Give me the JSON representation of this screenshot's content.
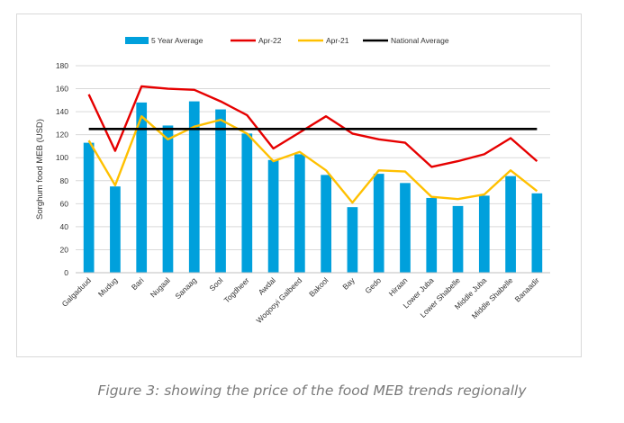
{
  "chart_data": {
    "type": "bar",
    "title": "",
    "xlabel": "",
    "ylabel": "Sorghum food MEB (USD)",
    "ylim": [
      0,
      180
    ],
    "yticks": [
      0,
      20,
      40,
      60,
      80,
      100,
      120,
      140,
      160,
      180
    ],
    "grid": true,
    "legend_position": "top",
    "categories": [
      "Galgaduud",
      "Mudug",
      "Bari",
      "Nugaal",
      "Sanaag",
      "Sool",
      "Togdheer",
      "Awdal",
      "Woqooyi Galbeed",
      "Bakool",
      "Bay",
      "Gedo",
      "Hiraan",
      "Lower Juba",
      "Lower Shabelle",
      "Middle Juba",
      "Middle Shabelle",
      "Banaadir"
    ],
    "series": [
      {
        "name": "5 Year Average",
        "kind": "bar",
        "color": "#00a0dc",
        "values": [
          113,
          75,
          148,
          128,
          149,
          142,
          121,
          98,
          103,
          85,
          57,
          86,
          78,
          65,
          58,
          67,
          84,
          69
        ]
      },
      {
        "name": "Apr-22",
        "kind": "line",
        "color": "#e60000",
        "values": [
          155,
          106,
          162,
          160,
          159,
          149,
          137,
          108,
          122,
          136,
          121,
          116,
          113,
          92,
          97,
          103,
          117,
          97
        ]
      },
      {
        "name": "Apr-21",
        "kind": "line",
        "color": "#ffc000",
        "values": [
          115,
          76,
          136,
          116,
          127,
          133,
          121,
          97,
          105,
          89,
          61,
          89,
          88,
          66,
          64,
          68,
          89,
          71
        ]
      },
      {
        "name": "National Average",
        "kind": "line",
        "color": "#000000",
        "values": [
          125,
          125,
          125,
          125,
          125,
          125,
          125,
          125,
          125,
          125,
          125,
          125,
          125,
          125,
          125,
          125,
          125,
          125
        ]
      }
    ]
  },
  "caption": "Figure 3: showing the price of the food MEB trends regionally"
}
